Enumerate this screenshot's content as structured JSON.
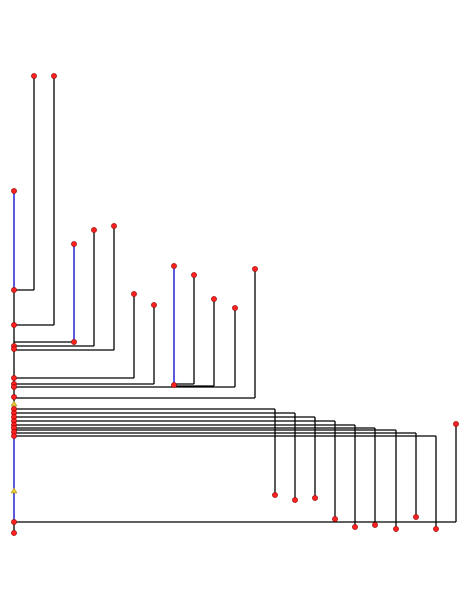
{
  "colors": {
    "background": "#ffffff",
    "branch": "#000000",
    "highlight_branch": "#0000cc",
    "node_fill": "#ff2020",
    "node_stroke": "#880000",
    "marker_fill": "#e8c830"
  },
  "diagram": {
    "type": "tree",
    "orientation": "root-left-spine",
    "node_count": 44,
    "marker_count": 2,
    "highlighted_branches": 3
  }
}
